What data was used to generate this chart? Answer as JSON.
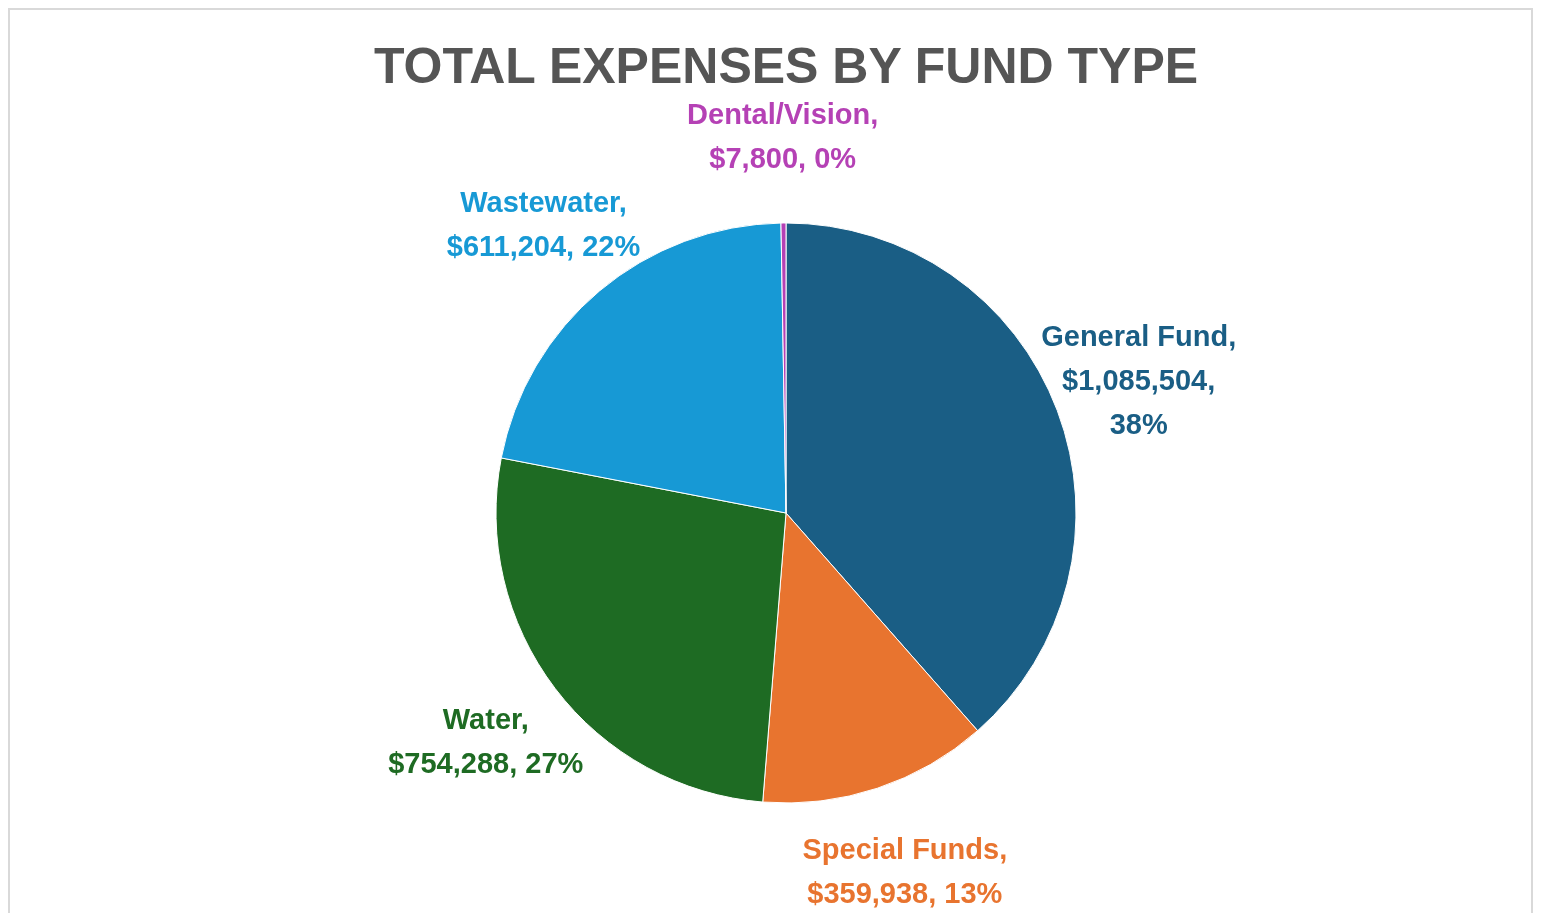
{
  "chart_data": {
    "type": "pie",
    "title": "TOTAL EXPENSES BY FUND TYPE",
    "categories": [
      "General Fund",
      "Special Funds",
      "Water",
      "Wastewater",
      "Dental/Vision"
    ],
    "values": [
      1085504,
      359938,
      754288,
      611204,
      7800
    ],
    "colors": [
      "#1a5e85",
      "#e8742f",
      "#1e6b23",
      "#1799d5",
      "#b541b5"
    ],
    "value_labels": [
      ", $1,085,504, 38%",
      ", $359,938, 13%",
      ", $754,288, 27%",
      ", $611,204, 22%",
      ", $7,800, 0%"
    ],
    "legend": false
  }
}
